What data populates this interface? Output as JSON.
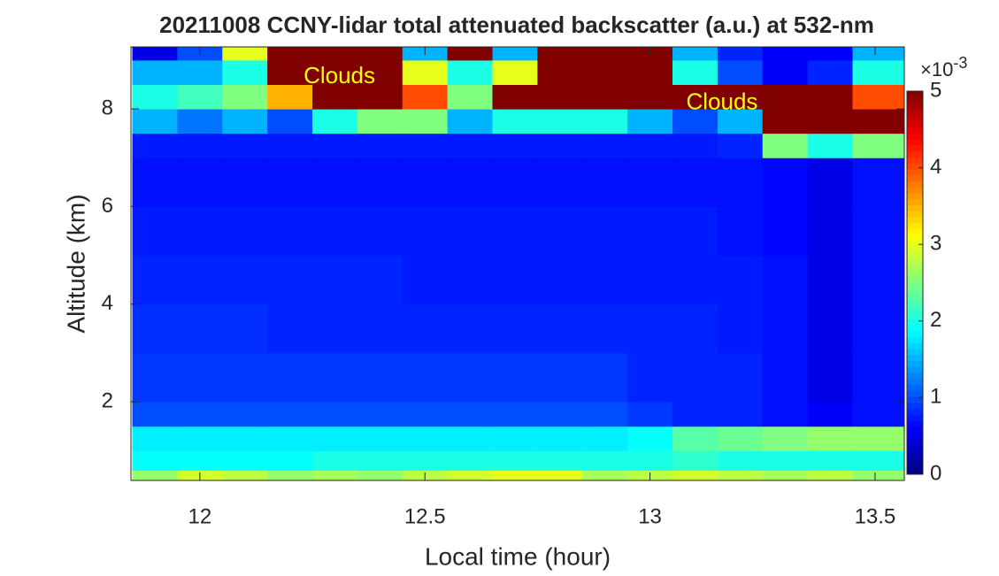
{
  "chart_data": {
    "type": "heatmap",
    "title": "20211008 CCNY-lidar total attenuated backscatter (a.u.) at 532-nm",
    "xlabel": "Local time (hour)",
    "ylabel": "Altitude (km)",
    "xlim": [
      11.847,
      13.565
    ],
    "ylim": [
      0.39,
      9.27
    ],
    "xticks": [
      12,
      12.5,
      13,
      13.5
    ],
    "yticks": [
      2,
      4,
      6,
      8
    ],
    "xbins": [
      11.85,
      11.95,
      12.05,
      12.15,
      12.25,
      12.35,
      12.45,
      12.55,
      12.65,
      12.75,
      12.85,
      12.95,
      13.05,
      13.15,
      13.25,
      13.35,
      13.45,
      13.565
    ],
    "ybins": [
      0.39,
      0.6,
      1.0,
      1.5,
      2,
      3,
      4,
      5,
      6,
      7,
      7.5,
      8,
      8.5,
      9,
      9.27
    ],
    "colormap": "jet",
    "clim": [
      0,
      5
    ],
    "cticks": [
      0,
      1,
      2,
      3,
      4,
      5
    ],
    "colorbar_multiplier": {
      "base": "×10",
      "exponent": "-3"
    },
    "z": [
      [
        2.6,
        2.9,
        2.8,
        2.6,
        2.7,
        2.6,
        2.8,
        2.9,
        3.0,
        3.0,
        2.7,
        2.8,
        2.9,
        2.8,
        2.7,
        2.8,
        2.6
      ],
      [
        1.9,
        1.9,
        1.9,
        1.9,
        2.0,
        2.0,
        2.0,
        2.0,
        2.0,
        2.0,
        2.0,
        2.0,
        2.1,
        2.0,
        2.0,
        2.0,
        2.0
      ],
      [
        1.8,
        1.8,
        1.8,
        1.8,
        1.8,
        1.8,
        1.8,
        1.8,
        1.8,
        1.8,
        1.8,
        1.9,
        2.3,
        2.4,
        2.5,
        2.6,
        2.6
      ],
      [
        1.0,
        1.0,
        1.0,
        1.0,
        1.0,
        1.0,
        1.0,
        1.0,
        1.0,
        1.0,
        1.0,
        0.9,
        0.8,
        0.8,
        0.7,
        0.6,
        0.7
      ],
      [
        0.9,
        0.9,
        0.9,
        0.9,
        0.9,
        0.9,
        0.9,
        0.9,
        0.9,
        0.9,
        0.9,
        0.8,
        0.8,
        0.8,
        0.7,
        0.5,
        0.7
      ],
      [
        0.85,
        0.85,
        0.85,
        0.8,
        0.8,
        0.8,
        0.8,
        0.8,
        0.8,
        0.8,
        0.8,
        0.8,
        0.8,
        0.75,
        0.7,
        0.5,
        0.7
      ],
      [
        0.8,
        0.8,
        0.8,
        0.8,
        0.8,
        0.8,
        0.75,
        0.75,
        0.75,
        0.75,
        0.75,
        0.75,
        0.75,
        0.75,
        0.7,
        0.5,
        0.7
      ],
      [
        0.75,
        0.75,
        0.75,
        0.75,
        0.75,
        0.75,
        0.75,
        0.75,
        0.75,
        0.75,
        0.75,
        0.75,
        0.75,
        0.7,
        0.65,
        0.5,
        0.7
      ],
      [
        0.7,
        0.7,
        0.7,
        0.7,
        0.7,
        0.7,
        0.7,
        0.7,
        0.7,
        0.7,
        0.7,
        0.7,
        0.7,
        0.7,
        0.65,
        0.5,
        0.7
      ],
      [
        0.75,
        0.75,
        0.75,
        0.75,
        0.75,
        0.75,
        0.75,
        0.75,
        0.75,
        0.75,
        0.75,
        0.75,
        0.75,
        0.8,
        2.5,
        2.0,
        2.5
      ],
      [
        1.5,
        1.2,
        1.5,
        1.0,
        2.0,
        2.5,
        2.5,
        1.5,
        2.0,
        2.0,
        2.0,
        1.5,
        1.0,
        1.5,
        5,
        5,
        5
      ],
      [
        2.0,
        2.2,
        2.5,
        3.5,
        5,
        5,
        4,
        2.5,
        5,
        5,
        5,
        5,
        5,
        5,
        5,
        5,
        4
      ],
      [
        1.5,
        1.5,
        2,
        5,
        5,
        5,
        3,
        2,
        3,
        5,
        5,
        5,
        2,
        1,
        0.6,
        0.8,
        2
      ],
      [
        0.5,
        1,
        3,
        5,
        5,
        5,
        1.5,
        5,
        1.5,
        5,
        5,
        5,
        1.5,
        0.8,
        0.6,
        0.6,
        1.5
      ]
    ],
    "annotations": [
      {
        "text": "Clouds",
        "x": 12.31,
        "y": 8.65
      },
      {
        "text": "Clouds",
        "x": 13.16,
        "y": 8.12
      }
    ]
  }
}
